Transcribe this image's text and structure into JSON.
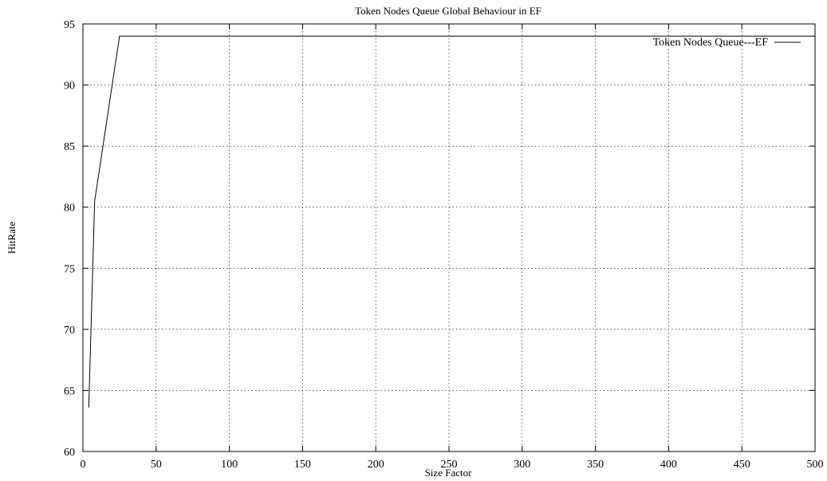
{
  "chart_data": {
    "type": "line",
    "title": "Token Nodes Queue Global Behaviour in EF",
    "xlabel": "Size Factor",
    "ylabel": "HitRate",
    "xlim": [
      0,
      500
    ],
    "ylim": [
      60,
      95
    ],
    "xticks": [
      0,
      50,
      100,
      150,
      200,
      250,
      300,
      350,
      400,
      450,
      500
    ],
    "yticks": [
      60,
      65,
      70,
      75,
      80,
      85,
      90,
      95
    ],
    "grid": true,
    "legend_position": "top-right",
    "series": [
      {
        "name": "Token Nodes Queue---EF",
        "color": "#000000",
        "x": [
          4,
          8,
          25,
          500
        ],
        "y": [
          63.6,
          80.5,
          94.0,
          94.0
        ]
      }
    ]
  }
}
